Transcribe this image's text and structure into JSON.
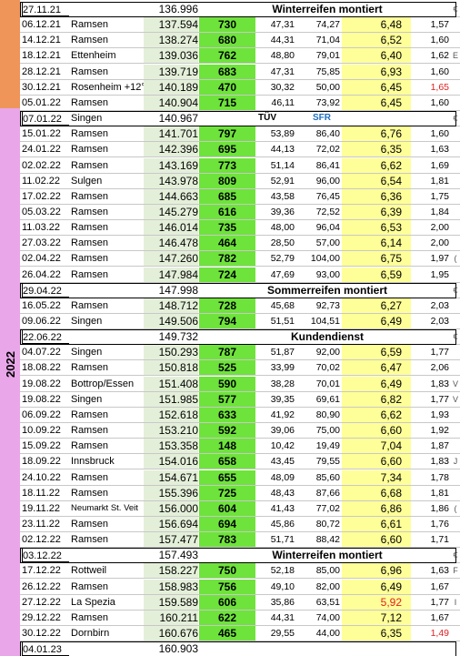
{
  "year": "2022",
  "colors": {
    "strip_2021": "#f0955a",
    "strip_2022": "#e9a7e9",
    "km_fill": "#e4efd9",
    "dist_fill": "#6ee33b",
    "cons_fill": "#ffff99",
    "red": "#e02020",
    "sfr_blue": "#1f6fc2"
  },
  "rows": [
    {
      "type": "sep",
      "date": "27.11.21",
      "km": "136.996",
      "note": "Winterreifen montiert",
      "edge": "€"
    },
    {
      "type": "data",
      "date": "06.12.21",
      "place": "Ramsen",
      "km": "137.594",
      "dist": "730",
      "l": "47,31",
      "cost": "74,27",
      "cons": "6,48",
      "price": "1,57",
      "edge": ""
    },
    {
      "type": "data",
      "date": "14.12.21",
      "place": "Ramsen",
      "km": "138.274",
      "dist": "680",
      "l": "44,31",
      "cost": "71,04",
      "cons": "6,52",
      "price": "1,60",
      "edge": ""
    },
    {
      "type": "data",
      "date": "18.12.21",
      "place": "Ettenheim",
      "km": "139.036",
      "dist": "762",
      "l": "48,80",
      "cost": "79,01",
      "cons": "6,40",
      "price": "1,62",
      "edge": "E"
    },
    {
      "type": "data",
      "date": "28.12.21",
      "place": "Ramsen",
      "km": "139.719",
      "dist": "683",
      "l": "47,31",
      "cost": "75,85",
      "cons": "6,93",
      "price": "1,60",
      "edge": ""
    },
    {
      "type": "data",
      "date": "30.12.21",
      "place": "Rosenheim +12°",
      "km": "140.189",
      "dist": "470",
      "l": "30,32",
      "cost": "50,00",
      "cons": "6,45",
      "price": "1,65",
      "edge": "",
      "price_red": true
    },
    {
      "type": "data",
      "date": "05.01.22",
      "place": "Ramsen",
      "km": "140.904",
      "dist": "715",
      "l": "46,11",
      "cost": "73,92",
      "cons": "6,45",
      "price": "1,60",
      "edge": ""
    },
    {
      "type": "sep",
      "date": "07.01.22",
      "place": "Singen",
      "km": "140.967",
      "tuv": "TÜV",
      "sfr": "SFR",
      "edge": "€"
    },
    {
      "type": "data",
      "date": "15.01.22",
      "place": "Ramsen",
      "km": "141.701",
      "dist": "797",
      "l": "53,89",
      "cost": "86,40",
      "cons": "6,76",
      "price": "1,60",
      "edge": ""
    },
    {
      "type": "data",
      "date": "24.01.22",
      "place": "Ramsen",
      "km": "142.396",
      "dist": "695",
      "l": "44,13",
      "cost": "72,02",
      "cons": "6,35",
      "price": "1,63",
      "edge": ""
    },
    {
      "type": "data",
      "date": "02.02.22",
      "place": "Ramsen",
      "km": "143.169",
      "dist": "773",
      "l": "51,14",
      "cost": "86,41",
      "cons": "6,62",
      "price": "1,69",
      "edge": ""
    },
    {
      "type": "data",
      "date": "11.02.22",
      "place": "Sulgen",
      "km": "143.978",
      "dist": "809",
      "l": "52,91",
      "cost": "96,00",
      "cons": "6,54",
      "price": "1,81",
      "edge": ""
    },
    {
      "type": "data",
      "date": "17.02.22",
      "place": "Ramsen",
      "km": "144.663",
      "dest": "",
      "dist": "685",
      "l": "43,58",
      "cost": "76,45",
      "cons": "6,36",
      "price": "1,75",
      "edge": ""
    },
    {
      "type": "data",
      "date": "05.03.22",
      "place": "Ramsen",
      "km": "145.279",
      "dist": "616",
      "l": "39,36",
      "cost": "72,52",
      "cons": "6,39",
      "price": "1,84",
      "edge": ""
    },
    {
      "type": "data",
      "date": "11.03.22",
      "place": "Ramsen",
      "km": "146.014",
      "dist": "735",
      "l": "48,00",
      "cost": "96,04",
      "cons": "6,53",
      "price": "2,00",
      "edge": ""
    },
    {
      "type": "data",
      "date": "27.03.22",
      "place": "Ramsen",
      "km": "146.478",
      "dist": "464",
      "l": "28,50",
      "cost": "57,00",
      "cons": "6,14",
      "price": "2,00",
      "edge": ""
    },
    {
      "type": "data",
      "date": "02.04.22",
      "place": "Ramsen",
      "km": "147.260",
      "dist": "782",
      "l": "52,79",
      "cost": "104,00",
      "cons": "6,75",
      "price": "1,97",
      "edge": "("
    },
    {
      "type": "data",
      "date": "26.04.22",
      "place": "Ramsen",
      "km": "147.984",
      "dist": "724",
      "l": "47,69",
      "cost": "93,00",
      "cons": "6,59",
      "price": "1,95",
      "edge": ""
    },
    {
      "type": "sep",
      "date": "29.04.22",
      "km": "147.998",
      "note": "Sommerreifen montiert",
      "edge": "€"
    },
    {
      "type": "data",
      "date": "16.05.22",
      "place": "Ramsen",
      "km": "148.712",
      "dist": "728",
      "l": "45,68",
      "cost": "92,73",
      "cons": "6,27",
      "price": "2,03",
      "edge": ""
    },
    {
      "type": "data",
      "date": "09.06.22",
      "place": "Singen",
      "km": "149.506",
      "dist": "794",
      "l": "51,51",
      "cost": "104,51",
      "cons": "6,49",
      "price": "2,03",
      "edge": ""
    },
    {
      "type": "sep",
      "date": "22.06.22",
      "km": "149.732",
      "note": "Kundendienst",
      "edge": "€"
    },
    {
      "type": "data",
      "date": "04.07.22",
      "place": "Singen",
      "km": "150.293",
      "dist": "787",
      "l": "51,87",
      "cost": "92,00",
      "cons": "6,59",
      "price": "1,77",
      "edge": ""
    },
    {
      "type": "data",
      "date": "18.08.22",
      "place": "Ramsen",
      "km": "150.818",
      "dist": "525",
      "l": "33,99",
      "cost": "70,02",
      "cons": "6,47",
      "price": "2,06",
      "edge": ""
    },
    {
      "type": "data",
      "date": "19.08.22",
      "place": "Bottrop/Essen",
      "km": "151.408",
      "dist": "590",
      "l": "38,28",
      "cost": "70,01",
      "cons": "6,49",
      "price": "1,83",
      "edge": "V"
    },
    {
      "type": "data",
      "date": "19.08.22",
      "place": "Singen",
      "km": "151.985",
      "dist": "577",
      "l": "39,35",
      "cost": "69,61",
      "cons": "6,82",
      "price": "1,77",
      "edge": "V"
    },
    {
      "type": "data",
      "date": "06.09.22",
      "place": "Ramsen",
      "km": "152.618",
      "dist": "633",
      "l": "41,92",
      "cost": "80,90",
      "cons": "6,62",
      "price": "1,93",
      "edge": ""
    },
    {
      "type": "data",
      "date": "10.09.22",
      "place": "Ramsen",
      "km": "153.210",
      "dist": "592",
      "l": "39,06",
      "cost": "75,00",
      "cons": "6,60",
      "price": "1,92",
      "edge": ""
    },
    {
      "type": "data",
      "date": "15.09.22",
      "place": "Ramsen",
      "km": "153.358",
      "dist": "148",
      "l": "10,42",
      "cost": "19,49",
      "cons": "7,04",
      "price": "1,87",
      "edge": ""
    },
    {
      "type": "data",
      "date": "18.09.22",
      "place": "Innsbruck",
      "km": "154.016",
      "dist": "658",
      "l": "43,45",
      "cost": "79,55",
      "cons": "6,60",
      "price": "1,83",
      "edge": "J"
    },
    {
      "type": "data",
      "date": "24.10.22",
      "place": "Ramsen",
      "km": "154.671",
      "dist": "655",
      "l": "48,09",
      "cost": "85,60",
      "cons": "7,34",
      "price": "1,78",
      "edge": ""
    },
    {
      "type": "data",
      "date": "18.11.22",
      "place": "Ramsen",
      "km": "155.396",
      "dist": "725",
      "l": "48,43",
      "cost": "87,66",
      "cons": "6,68",
      "price": "1,81",
      "edge": ""
    },
    {
      "type": "data",
      "date": "19.11.22",
      "place": "Neumarkt St. Veit",
      "km": "156.000",
      "dist": "604",
      "l": "41,43",
      "cost": "77,02",
      "cons": "6,86",
      "price": "1,86",
      "edge": "(",
      "place_small": true
    },
    {
      "type": "data",
      "date": "23.11.22",
      "place": "Ramsen",
      "km": "156.694",
      "dist": "694",
      "l": "45,86",
      "cost": "80,72",
      "cons": "6,61",
      "price": "1,76",
      "edge": ""
    },
    {
      "type": "data",
      "date": "02.12.22",
      "place": "Ramsen",
      "km": "157.477",
      "dist": "783",
      "l": "51,71",
      "cost": "88,42",
      "cons": "6,60",
      "price": "1,71",
      "edge": ""
    },
    {
      "type": "sep",
      "date": "03.12.22",
      "km": "157.493",
      "note": "Winterreifen montiert",
      "edge": "€"
    },
    {
      "type": "data",
      "date": "17.12.22",
      "place": "Rottweil",
      "km": "158.227",
      "dist": "750",
      "l": "52,18",
      "cost": "85,00",
      "cons": "6,96",
      "price": "1,63",
      "edge": "F"
    },
    {
      "type": "data",
      "date": "26.12.22",
      "place": "Ramsen",
      "km": "158.983",
      "dist": "756",
      "l": "49,10",
      "cost": "82,00",
      "cons": "6,49",
      "price": "1,67",
      "edge": ""
    },
    {
      "type": "data",
      "date": "27.12.22",
      "place": "La Spezia",
      "km": "159.589",
      "dist": "606",
      "l": "35,86",
      "cost": "63,51",
      "cons": "5,92",
      "price": "1,77",
      "edge": "I",
      "cons_red": true
    },
    {
      "type": "data",
      "date": "29.12.22",
      "place": "Ramsen",
      "km": "160.211",
      "dist": "622",
      "l": "44,31",
      "cost": "74,00",
      "cons": "7,12",
      "price": "1,67",
      "edge": ""
    },
    {
      "type": "data",
      "date": "30.12.22",
      "place": "Dornbirn",
      "km": "160.676",
      "dist": "465",
      "l": "29,55",
      "cost": "44,00",
      "cons": "6,35",
      "price": "1,49",
      "edge": "",
      "price_red": true
    },
    {
      "type": "sep",
      "date": "04.01.23",
      "km": "160.903",
      "note": "",
      "edge": ""
    }
  ]
}
